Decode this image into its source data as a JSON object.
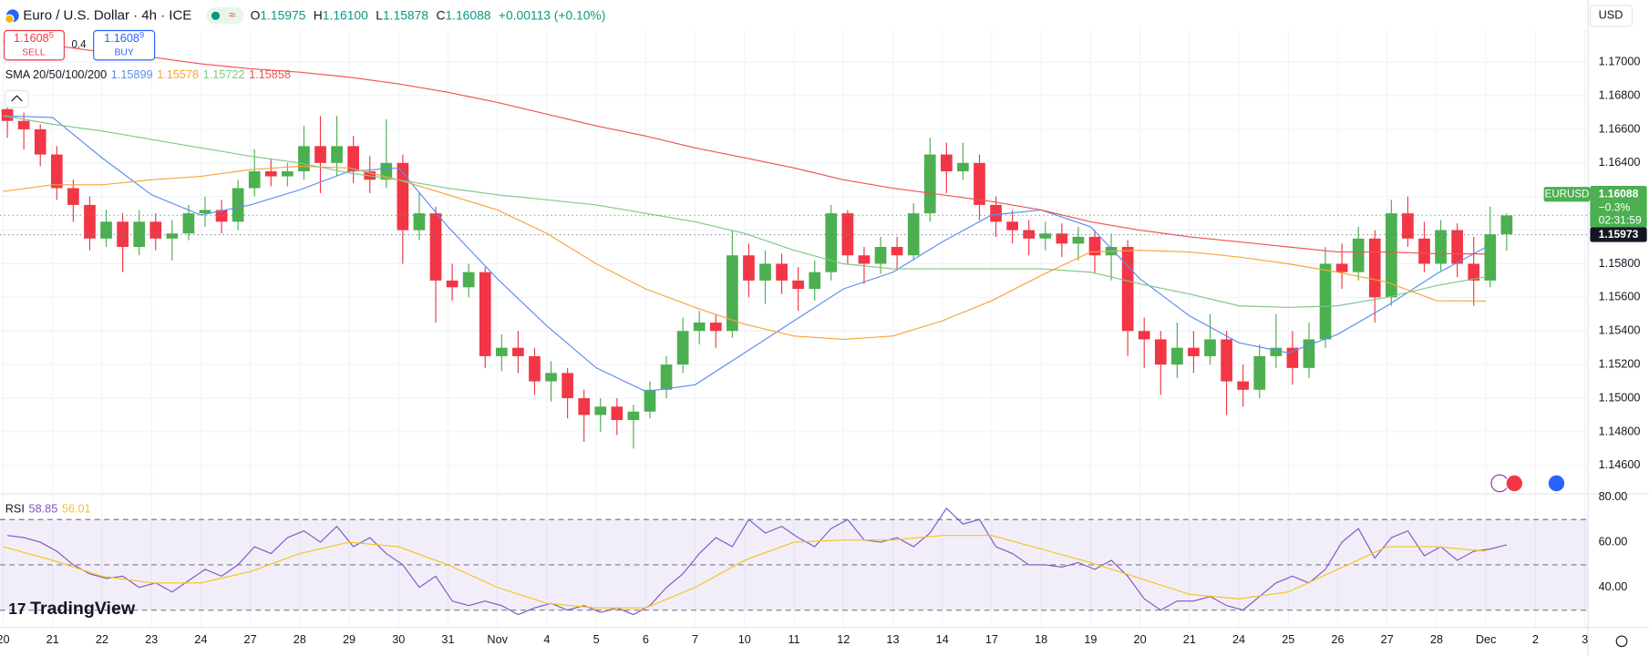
{
  "header": {
    "title": "Euro / U.S. Dollar · 4h · ICE",
    "ohlc": [
      {
        "key": "O",
        "value": "1.15975"
      },
      {
        "key": "H",
        "value": "1.16100"
      },
      {
        "key": "L",
        "value": "1.15878"
      },
      {
        "key": "C",
        "value": "1.16088"
      }
    ],
    "change": "+0.00113 (+0.10%)",
    "currency": "USD"
  },
  "trade": {
    "sell": {
      "price": "1.1608",
      "pip": "5",
      "label": "SELL"
    },
    "spread": "0.4",
    "buy": {
      "price": "1.1608",
      "pip": "9",
      "label": "BUY"
    }
  },
  "branding": "TradingView",
  "chart_data": {
    "type": "candlestick",
    "categories": [
      "20",
      "21",
      "22",
      "23",
      "24",
      "27",
      "28",
      "29",
      "30",
      "31",
      "Nov",
      "4",
      "5",
      "6",
      "7",
      "10",
      "11",
      "12",
      "13",
      "14",
      "17",
      "18",
      "19",
      "20",
      "21",
      "24",
      "25",
      "26",
      "27",
      "28",
      "Dec",
      "2",
      "3"
    ],
    "up_color": "#4caf50",
    "down_color": "#f23645",
    "ylim": [
      1.14437,
      1.17194
    ],
    "yticks": [
      {
        "value": 1.146,
        "label": "1.14600"
      },
      {
        "value": 1.148,
        "label": "1.14800"
      },
      {
        "value": 1.15,
        "label": "1.15000"
      },
      {
        "value": 1.152,
        "label": "1.15200"
      },
      {
        "value": 1.154,
        "label": "1.15400"
      },
      {
        "value": 1.156,
        "label": "1.15600"
      },
      {
        "value": 1.158,
        "label": "1.15800"
      },
      {
        "value": 1.16,
        "label": "1.16000"
      },
      {
        "value": 1.162,
        "label": "1.16200"
      },
      {
        "value": 1.164,
        "label": "1.16400"
      },
      {
        "value": 1.166,
        "label": "1.16600"
      },
      {
        "value": 1.168,
        "label": "1.16800"
      },
      {
        "value": 1.17,
        "label": "1.17000"
      }
    ],
    "grid": true,
    "ohlc": [
      [
        1.1672,
        1.168,
        1.1655,
        1.1665
      ],
      [
        1.1665,
        1.167,
        1.1648,
        1.166
      ],
      [
        1.166,
        1.1663,
        1.1638,
        1.1645
      ],
      [
        1.1645,
        1.165,
        1.1618,
        1.1625
      ],
      [
        1.1625,
        1.163,
        1.1605,
        1.1615
      ],
      [
        1.1615,
        1.162,
        1.1588,
        1.1595
      ],
      [
        1.1595,
        1.1612,
        1.159,
        1.1605
      ],
      [
        1.1605,
        1.161,
        1.1575,
        1.159
      ],
      [
        1.159,
        1.1612,
        1.1585,
        1.1605
      ],
      [
        1.1605,
        1.161,
        1.1588,
        1.1595
      ],
      [
        1.1595,
        1.1606,
        1.1582,
        1.1598
      ],
      [
        1.1598,
        1.1615,
        1.1594,
        1.161
      ],
      [
        1.161,
        1.162,
        1.1602,
        1.1612
      ],
      [
        1.1612,
        1.1618,
        1.1598,
        1.1605
      ],
      [
        1.1605,
        1.163,
        1.16,
        1.1625
      ],
      [
        1.1625,
        1.1648,
        1.162,
        1.1635
      ],
      [
        1.1635,
        1.1642,
        1.1626,
        1.1632
      ],
      [
        1.1632,
        1.164,
        1.1626,
        1.1635
      ],
      [
        1.1635,
        1.1662,
        1.163,
        1.165
      ],
      [
        1.165,
        1.1668,
        1.1622,
        1.164
      ],
      [
        1.164,
        1.1668,
        1.1632,
        1.165
      ],
      [
        1.165,
        1.1656,
        1.1628,
        1.1635
      ],
      [
        1.1635,
        1.1644,
        1.1622,
        1.163
      ],
      [
        1.163,
        1.1666,
        1.1625,
        1.164
      ],
      [
        1.164,
        1.1645,
        1.158,
        1.16
      ],
      [
        1.16,
        1.1622,
        1.1594,
        1.161
      ],
      [
        1.161,
        1.1614,
        1.1545,
        1.157
      ],
      [
        1.157,
        1.158,
        1.1558,
        1.1566
      ],
      [
        1.1566,
        1.158,
        1.156,
        1.1575
      ],
      [
        1.1575,
        1.1578,
        1.1518,
        1.1525
      ],
      [
        1.1525,
        1.1538,
        1.1516,
        1.153
      ],
      [
        1.153,
        1.154,
        1.1515,
        1.1525
      ],
      [
        1.1525,
        1.153,
        1.1502,
        1.151
      ],
      [
        1.151,
        1.1522,
        1.1498,
        1.1515
      ],
      [
        1.1515,
        1.1518,
        1.1488,
        1.15
      ],
      [
        1.15,
        1.1505,
        1.1474,
        1.149
      ],
      [
        1.149,
        1.15,
        1.148,
        1.1495
      ],
      [
        1.1495,
        1.15,
        1.1478,
        1.1487
      ],
      [
        1.1487,
        1.1496,
        1.147,
        1.1492
      ],
      [
        1.1492,
        1.151,
        1.1488,
        1.1505
      ],
      [
        1.1505,
        1.1525,
        1.15,
        1.152
      ],
      [
        1.152,
        1.1548,
        1.1515,
        1.154
      ],
      [
        1.154,
        1.1552,
        1.1532,
        1.1545
      ],
      [
        1.1545,
        1.155,
        1.153,
        1.154
      ],
      [
        1.154,
        1.16,
        1.1536,
        1.1585
      ],
      [
        1.1585,
        1.1592,
        1.156,
        1.157
      ],
      [
        1.157,
        1.1588,
        1.1556,
        1.158
      ],
      [
        1.158,
        1.1586,
        1.1562,
        1.157
      ],
      [
        1.157,
        1.1578,
        1.1552,
        1.1565
      ],
      [
        1.1565,
        1.1582,
        1.1558,
        1.1575
      ],
      [
        1.1575,
        1.1615,
        1.157,
        1.161
      ],
      [
        1.161,
        1.1612,
        1.158,
        1.1585
      ],
      [
        1.1585,
        1.159,
        1.1568,
        1.158
      ],
      [
        1.158,
        1.1596,
        1.1574,
        1.159
      ],
      [
        1.159,
        1.1596,
        1.1576,
        1.1585
      ],
      [
        1.1585,
        1.1616,
        1.1582,
        1.161
      ],
      [
        1.161,
        1.1655,
        1.1605,
        1.1645
      ],
      [
        1.1645,
        1.1652,
        1.1622,
        1.1635
      ],
      [
        1.1635,
        1.1652,
        1.163,
        1.164
      ],
      [
        1.164,
        1.1645,
        1.1606,
        1.1615
      ],
      [
        1.1615,
        1.162,
        1.1596,
        1.1605
      ],
      [
        1.1605,
        1.1612,
        1.1592,
        1.16
      ],
      [
        1.16,
        1.1606,
        1.1585,
        1.1595
      ],
      [
        1.1595,
        1.1605,
        1.1588,
        1.1598
      ],
      [
        1.1598,
        1.1604,
        1.1584,
        1.1592
      ],
      [
        1.1592,
        1.1602,
        1.1582,
        1.1596
      ],
      [
        1.1596,
        1.16,
        1.1574,
        1.1585
      ],
      [
        1.1585,
        1.1598,
        1.157,
        1.159
      ],
      [
        1.159,
        1.1594,
        1.1525,
        1.154
      ],
      [
        1.154,
        1.1548,
        1.1518,
        1.1535
      ],
      [
        1.1535,
        1.154,
        1.1502,
        1.152
      ],
      [
        1.152,
        1.1545,
        1.1512,
        1.153
      ],
      [
        1.153,
        1.154,
        1.1515,
        1.1525
      ],
      [
        1.1525,
        1.155,
        1.152,
        1.1535
      ],
      [
        1.1535,
        1.154,
        1.149,
        1.151
      ],
      [
        1.151,
        1.152,
        1.1495,
        1.1505
      ],
      [
        1.1505,
        1.1532,
        1.15,
        1.1525
      ],
      [
        1.1525,
        1.155,
        1.1518,
        1.153
      ],
      [
        1.153,
        1.154,
        1.1508,
        1.1518
      ],
      [
        1.1518,
        1.1545,
        1.1512,
        1.1535
      ],
      [
        1.1535,
        1.159,
        1.153,
        1.158
      ],
      [
        1.158,
        1.1592,
        1.1565,
        1.1575
      ],
      [
        1.1575,
        1.1602,
        1.157,
        1.1595
      ],
      [
        1.1595,
        1.16,
        1.1545,
        1.156
      ],
      [
        1.156,
        1.1618,
        1.1555,
        1.161
      ],
      [
        1.161,
        1.162,
        1.159,
        1.1595
      ],
      [
        1.1595,
        1.1605,
        1.1575,
        1.158
      ],
      [
        1.158,
        1.1606,
        1.1576,
        1.16
      ],
      [
        1.16,
        1.1604,
        1.1572,
        1.158
      ],
      [
        1.158,
        1.1596,
        1.1555,
        1.157
      ],
      [
        1.157,
        1.1614,
        1.1566,
        1.15975
      ],
      [
        1.15975,
        1.161,
        1.15878,
        1.16088
      ]
    ],
    "indicator_label": "SMA 20/50/100/200",
    "series": [
      {
        "color": "#5b8def",
        "value_label": "1.15899",
        "values": [
          1.1668,
          1.1667,
          1.1643,
          1.1621,
          1.1609,
          1.1615,
          1.1624,
          1.1635,
          1.1637,
          1.1602,
          1.1571,
          1.1543,
          1.1518,
          1.1504,
          1.1508,
          1.1527,
          1.1546,
          1.1565,
          1.1575,
          1.1593,
          1.1609,
          1.1612,
          1.1602,
          1.1571,
          1.1549,
          1.1533,
          1.1527,
          1.1538,
          1.1555,
          1.1574,
          1.15899,
          null,
          null
        ]
      },
      {
        "color": "#f7a43b",
        "value_label": "1.15578",
        "values": [
          1.1623,
          1.1627,
          1.1627,
          1.163,
          1.1632,
          1.1636,
          1.1638,
          1.1637,
          1.163,
          1.1621,
          1.1612,
          1.1598,
          1.158,
          1.1565,
          1.1554,
          1.1544,
          1.1537,
          1.1535,
          1.1537,
          1.1546,
          1.1558,
          1.1573,
          1.1587,
          1.1588,
          1.1587,
          1.1584,
          1.158,
          1.1575,
          1.1569,
          1.1558,
          1.15578,
          null,
          null
        ]
      },
      {
        "color": "#81c784",
        "value_label": "1.15722",
        "values": [
          1.1668,
          1.1663,
          1.1659,
          1.1654,
          1.1649,
          1.1644,
          1.164,
          1.1634,
          1.163,
          1.1625,
          1.1621,
          1.1618,
          1.1615,
          1.161,
          1.1605,
          1.1598,
          1.1588,
          1.158,
          1.1577,
          1.1577,
          1.1577,
          1.1577,
          1.1575,
          1.1568,
          1.1562,
          1.1555,
          1.1554,
          1.1555,
          1.156,
          1.1567,
          1.15722,
          null,
          null
        ]
      },
      {
        "color": "#f05350",
        "value_label": "1.15858",
        "values": [
          1.1712,
          1.171,
          1.1706,
          1.1703,
          1.1699,
          1.1696,
          1.1694,
          1.1691,
          1.1687,
          1.1682,
          1.1676,
          1.1669,
          1.1662,
          1.1656,
          1.1649,
          1.1643,
          1.1637,
          1.163,
          1.1625,
          1.1621,
          1.1617,
          1.1612,
          1.1605,
          1.16,
          1.1596,
          1.1593,
          1.159,
          1.1587,
          1.1587,
          1.1586,
          1.15858,
          null,
          null
        ]
      }
    ],
    "last_price": {
      "symbol": "EURUSD",
      "value": 1.16088,
      "change": "−0.3%",
      "countdown": "02:31:59",
      "color": "#4caf50"
    },
    "ref_price": {
      "value": 1.15973,
      "color": "#131722"
    },
    "rsi": {
      "label": "RSI",
      "color": "#7e57c2",
      "ma_color": "#f5c518",
      "value_label": "58.85",
      "ma_value_label": "56.01",
      "ylim": [
        22.3,
        80.9
      ],
      "yticks": [
        {
          "value": 40,
          "label": "40.00"
        },
        {
          "value": 60,
          "label": "60.00"
        },
        {
          "value": 80,
          "label": "80.00"
        }
      ],
      "band": [
        30,
        70
      ],
      "midline": 50,
      "values": [
        63,
        62,
        60,
        56,
        50,
        46,
        44,
        45,
        40,
        42,
        38,
        43,
        48,
        45,
        50,
        58,
        55,
        62,
        65,
        60,
        67,
        58,
        62,
        55,
        50,
        40,
        45,
        34,
        32,
        34,
        32,
        28,
        31,
        33,
        30,
        32,
        29,
        31,
        28,
        32,
        40,
        46,
        55,
        62,
        58,
        70,
        64,
        67,
        62,
        58,
        66,
        70,
        61,
        60,
        62,
        58,
        64,
        75,
        68,
        70,
        58,
        55,
        50,
        50,
        49,
        51,
        48,
        52,
        45,
        35,
        30,
        34,
        34,
        36,
        32,
        30,
        36,
        42,
        45,
        42,
        48,
        60,
        66,
        53,
        62,
        65,
        54,
        58,
        52,
        56,
        57,
        58.85
      ],
      "ma_values": [
        58,
        52,
        45,
        42,
        42,
        47,
        55,
        60,
        58,
        50,
        40,
        33,
        31,
        31,
        40,
        52,
        60,
        61,
        61,
        63,
        63,
        57,
        51,
        44,
        37,
        35,
        38,
        48,
        58,
        58,
        56.01,
        null,
        null
      ]
    }
  }
}
